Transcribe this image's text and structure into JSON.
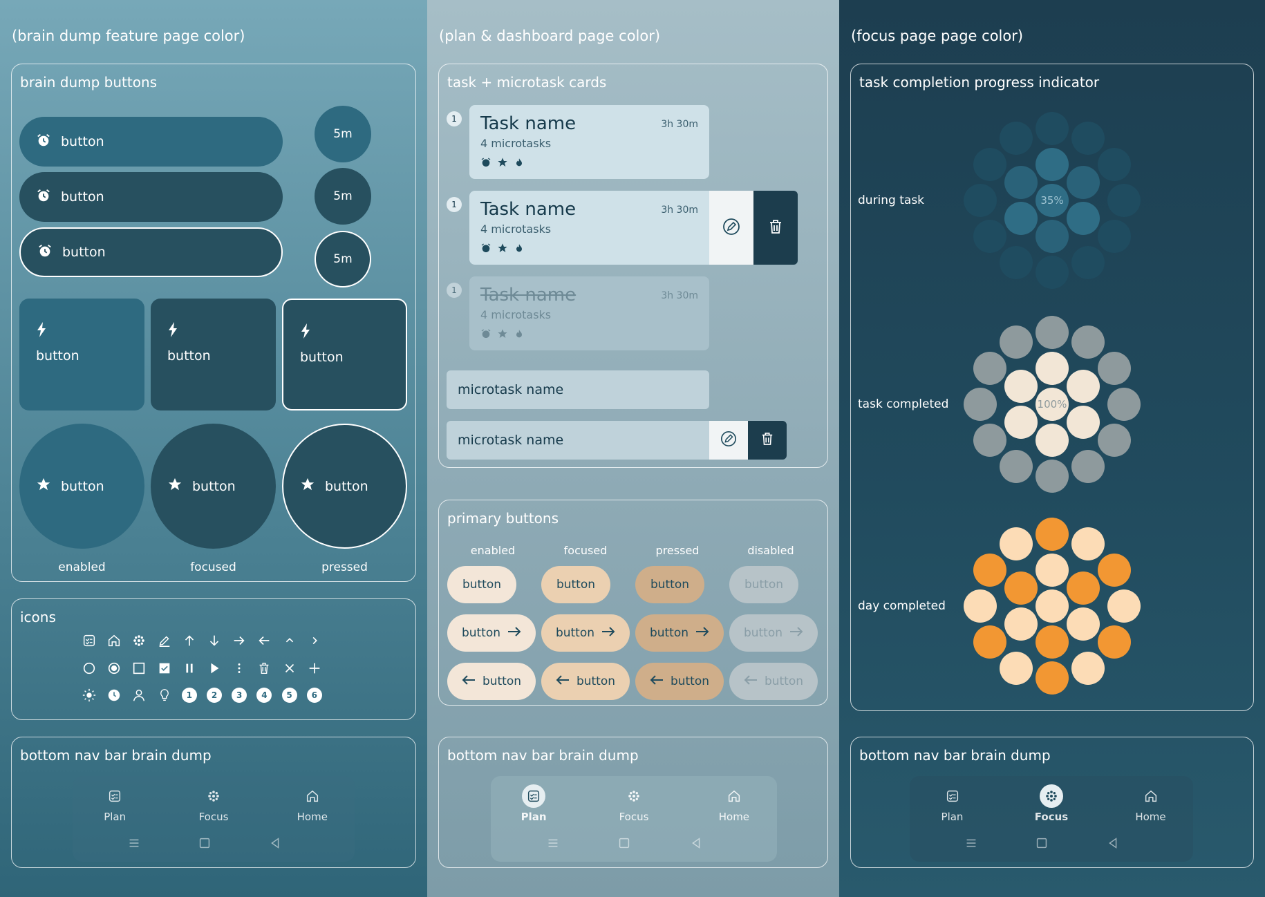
{
  "col1": {
    "page_label": "(brain dump feature page color)",
    "brain_dump_section": {
      "title": "brain dump buttons",
      "pill_label": "button",
      "timer_label": "5m",
      "tile_label": "button",
      "circle_label": "button",
      "states": [
        "enabled",
        "focused",
        "pressed"
      ]
    },
    "icons_section": {
      "title": "icons",
      "numbers": [
        "1",
        "2",
        "3",
        "4",
        "5",
        "6"
      ]
    },
    "nav_section": {
      "title": "bottom nav bar brain dump",
      "items": [
        {
          "label": "Plan",
          "icon": "plan-icon"
        },
        {
          "label": "Focus",
          "icon": "focus-icon"
        },
        {
          "label": "Home",
          "icon": "home-icon"
        }
      ],
      "active": null
    }
  },
  "col2": {
    "page_label": "(plan & dashboard page color)",
    "cards_section": {
      "title": "task + microtask cards",
      "tasks": [
        {
          "number": "1",
          "name": "Task name",
          "time": "3h 30m",
          "sub": "4 microtasks"
        },
        {
          "number": "1",
          "name": "Task name",
          "time": "3h 30m",
          "sub": "4 microtasks"
        },
        {
          "number": "1",
          "name": "Task name",
          "time": "3h 30m",
          "sub": "4 microtasks"
        }
      ],
      "microtasks": [
        "microtask name",
        "microtask name"
      ]
    },
    "primary_section": {
      "title": "primary buttons",
      "states": [
        "enabled",
        "focused",
        "pressed",
        "disabled"
      ],
      "label": "button"
    },
    "nav_section": {
      "title": "bottom nav bar brain dump",
      "items": [
        {
          "label": "Plan",
          "icon": "plan-icon"
        },
        {
          "label": "Focus",
          "icon": "focus-icon"
        },
        {
          "label": "Home",
          "icon": "home-icon"
        }
      ],
      "active": "Plan"
    }
  },
  "col3": {
    "page_label": "(focus page page color)",
    "progress_section": {
      "title": "task completion progress indicator",
      "indicators": [
        {
          "label": "during task",
          "percent": "35%",
          "progress": 0.35
        },
        {
          "label": "task completed",
          "percent": "100%",
          "progress": 1.0
        },
        {
          "label": "day completed",
          "percent": "",
          "progress": 1.0
        }
      ]
    },
    "nav_section": {
      "title": "bottom nav bar brain dump",
      "items": [
        {
          "label": "Plan",
          "icon": "plan-icon"
        },
        {
          "label": "Focus",
          "icon": "focus-icon"
        },
        {
          "label": "Home",
          "icon": "home-icon"
        }
      ],
      "active": "Focus"
    }
  },
  "colors": {
    "accent_orange": "#f29733",
    "cream": "#f3e6d8",
    "dark_teal": "#27505f"
  }
}
